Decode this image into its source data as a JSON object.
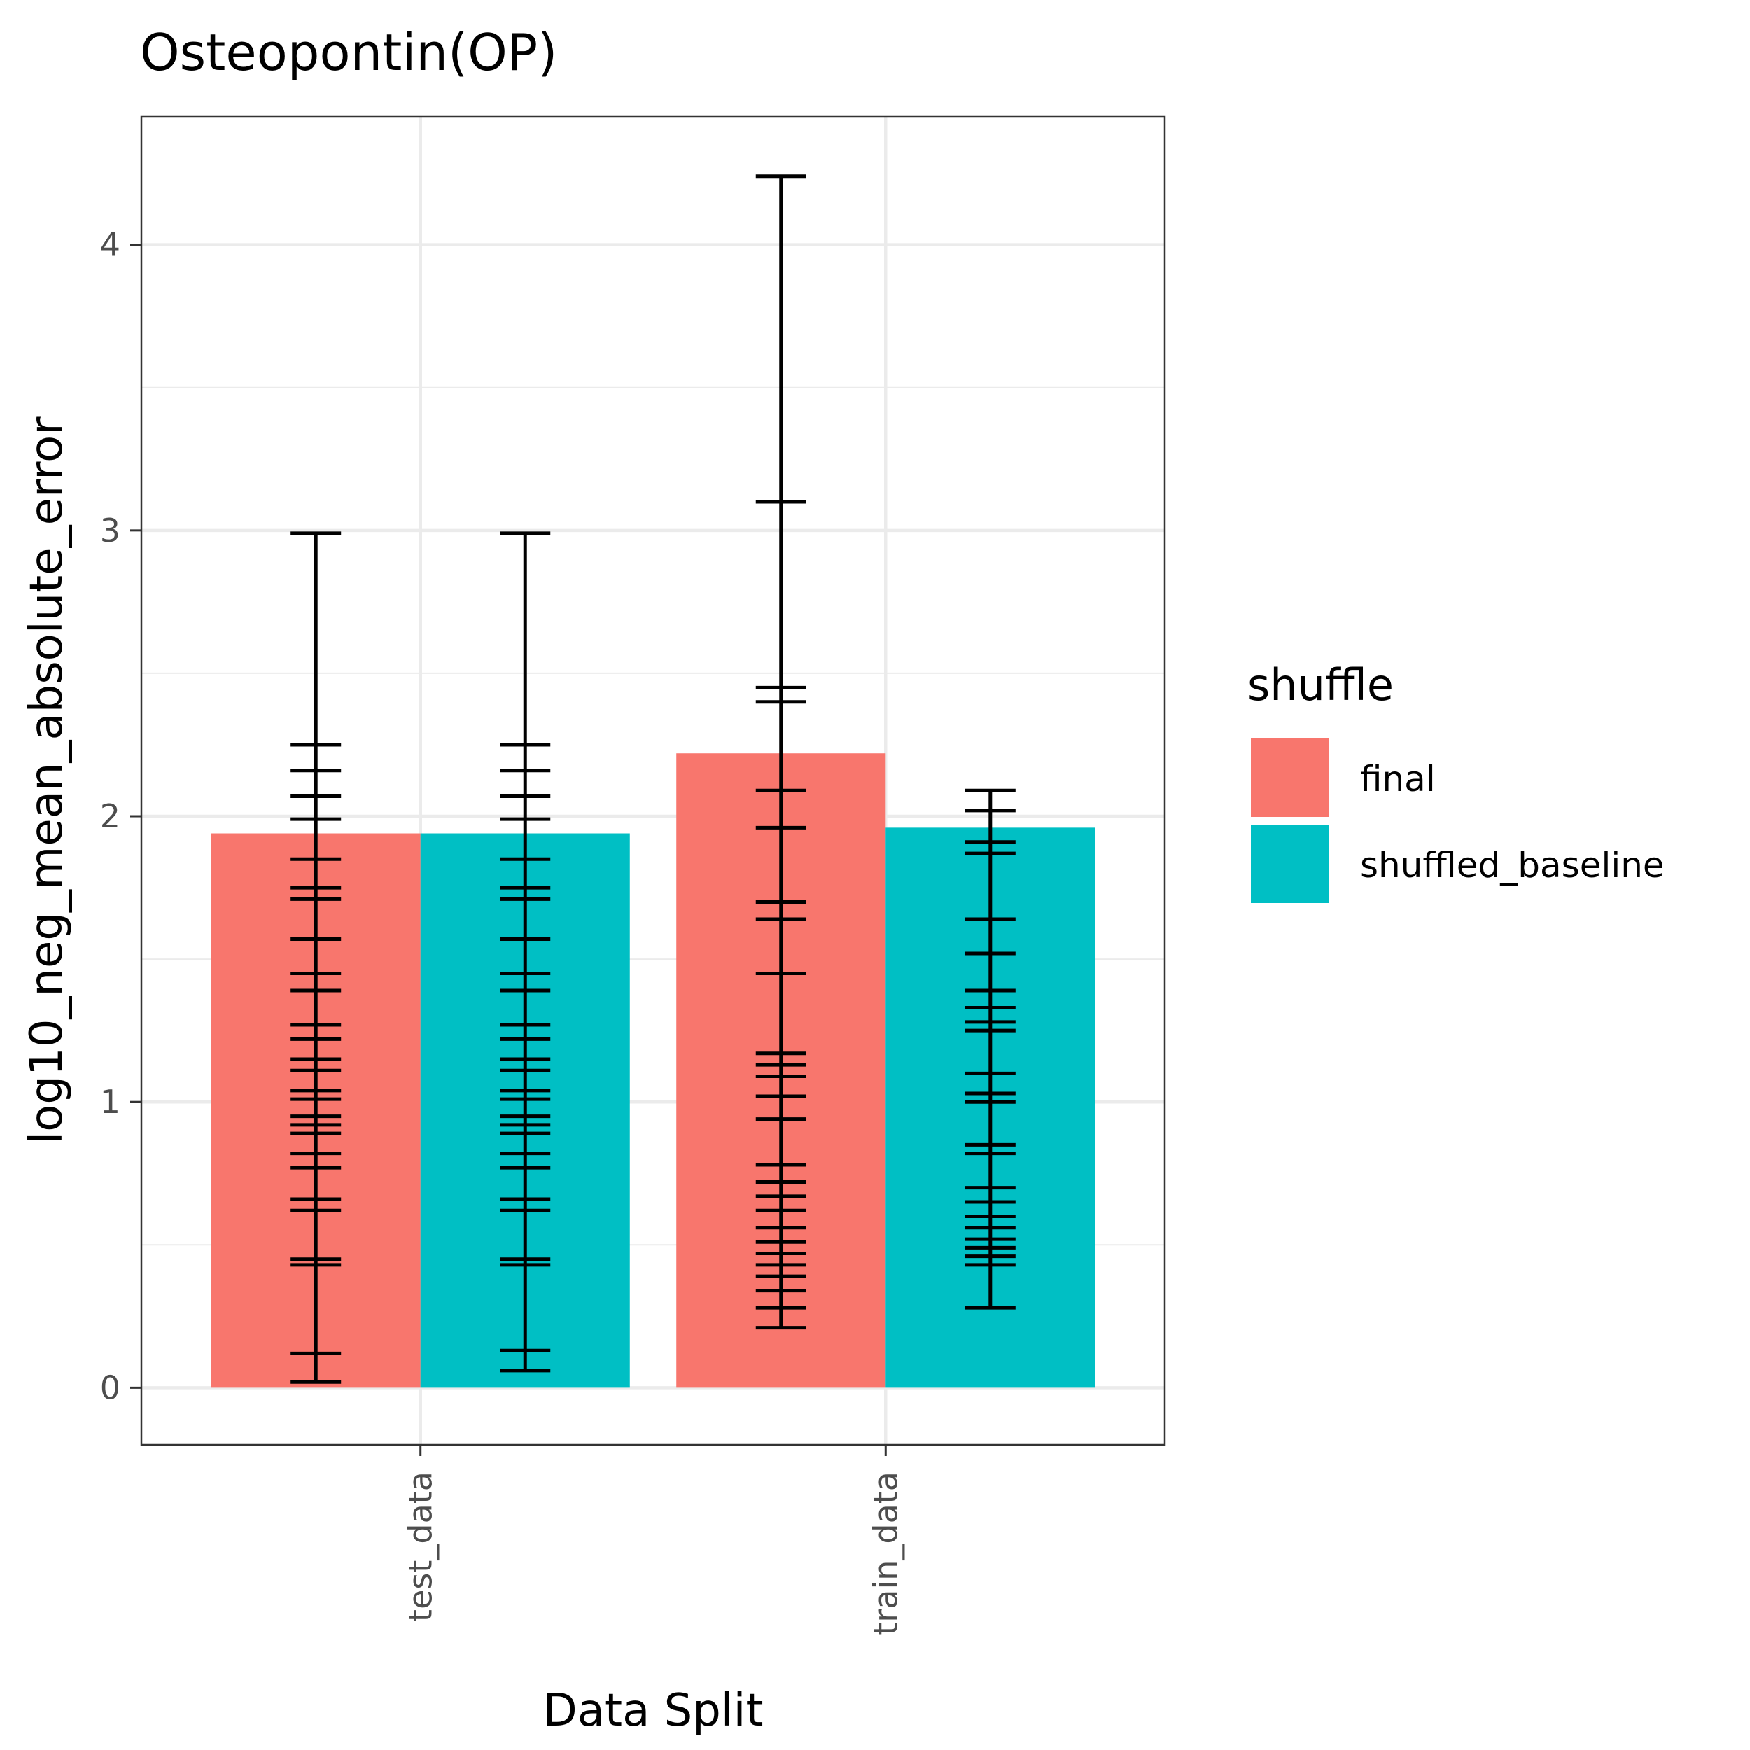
{
  "chart_data": {
    "type": "bar",
    "title": "Osteopontin(OP)",
    "xlabel": "Data Split",
    "ylabel": "log10_neg_mean_absolute_error",
    "categories": [
      "test_data",
      "train_data"
    ],
    "ylim": [
      -0.2,
      4.45
    ],
    "yticks": [
      0,
      1,
      2,
      3,
      4
    ],
    "grid": true,
    "legend": {
      "title": "shuffle",
      "position": "right"
    },
    "series": [
      {
        "name": "final",
        "color": "#F8766D",
        "values": [
          1.94,
          2.22
        ],
        "error_caps": [
          [
            0.02,
            0.12,
            0.43,
            0.45,
            0.62,
            0.66,
            0.77,
            0.82,
            0.89,
            0.92,
            0.95,
            1.01,
            1.04,
            1.11,
            1.15,
            1.22,
            1.27,
            1.39,
            1.45,
            1.57,
            1.71,
            1.75,
            1.85,
            1.99,
            2.07,
            2.16,
            2.25,
            2.99
          ],
          [
            0.21,
            0.28,
            0.34,
            0.39,
            0.43,
            0.47,
            0.51,
            0.56,
            0.62,
            0.67,
            0.72,
            0.78,
            0.94,
            1.02,
            1.09,
            1.13,
            1.17,
            1.45,
            1.64,
            1.7,
            1.96,
            2.09,
            2.4,
            2.45,
            3.1,
            4.24
          ]
        ]
      },
      {
        "name": "shuffled_baseline",
        "color": "#00BFC4",
        "values": [
          1.94,
          1.96
        ],
        "error_caps": [
          [
            0.06,
            0.13,
            0.43,
            0.45,
            0.62,
            0.66,
            0.77,
            0.82,
            0.89,
            0.92,
            0.95,
            1.01,
            1.04,
            1.11,
            1.15,
            1.22,
            1.27,
            1.39,
            1.45,
            1.57,
            1.71,
            1.75,
            1.85,
            1.99,
            2.07,
            2.16,
            2.25,
            2.99
          ],
          [
            0.28,
            0.43,
            0.46,
            0.49,
            0.52,
            0.56,
            0.6,
            0.65,
            0.7,
            0.82,
            0.85,
            1.0,
            1.03,
            1.1,
            1.25,
            1.28,
            1.33,
            1.39,
            1.52,
            1.64,
            1.87,
            1.91,
            2.02,
            2.09
          ]
        ]
      }
    ]
  }
}
